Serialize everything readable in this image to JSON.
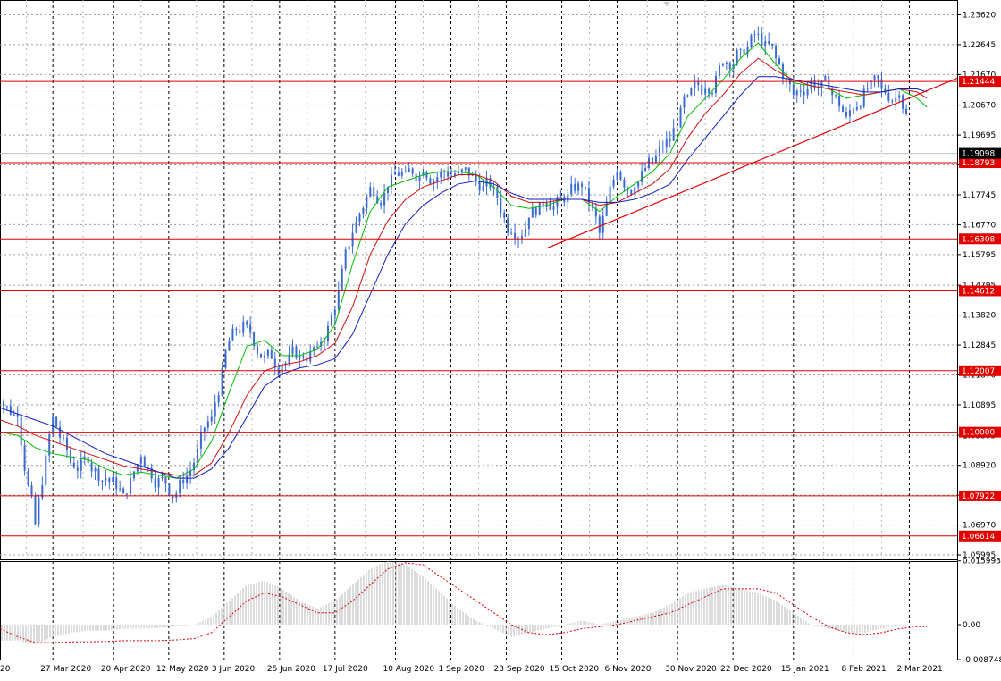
{
  "chart_data": {
    "type": "candlestick",
    "instrument_hint": "",
    "main_price_axis": {
      "ymin": 1.0585,
      "ymax": 1.241,
      "tick_labels": [
        "1.23620",
        "1.22645",
        "1.21670",
        "1.20670",
        "1.19695",
        "1.18720",
        "1.17745",
        "1.16770",
        "1.15795",
        "1.14795",
        "1.13820",
        "1.12845",
        "1.11870",
        "1.10895",
        "1.09895",
        "1.08920",
        "1.07945",
        "1.06970",
        "1.05995"
      ]
    },
    "x_axis": {
      "labels": [
        "20",
        "27 Mar 2020",
        "20 Apr 2020",
        "12 May 2020",
        "3 Jun 2020",
        "25 Jun 2020",
        "17 Jul 2020",
        "10 Aug 2020",
        "1 Sep 2020",
        "23 Sep 2020",
        "15 Oct 2020",
        "6 Nov 2020",
        "30 Nov 2020",
        "22 Dec 2020",
        "15 Jan 2021",
        "8 Feb 2021",
        "2 Mar 2021"
      ]
    },
    "horizontal_levels": [
      {
        "value": 1.21444,
        "label": "1.21444"
      },
      {
        "value": 1.18793,
        "label": "1.18793"
      },
      {
        "value": 1.16308,
        "label": "1.16308"
      },
      {
        "value": 1.14612,
        "label": "1.14612"
      },
      {
        "value": 1.12007,
        "label": "1.12007"
      },
      {
        "value": 1.1,
        "label": "1.10000"
      },
      {
        "value": 1.07922,
        "label": "1.07922"
      },
      {
        "value": 1.06614,
        "label": "1.06614"
      }
    ],
    "current_price": {
      "value": 1.19098,
      "label": "1.19098"
    },
    "trendline": {
      "from": {
        "date": "2020-10-09",
        "price": 1.16
      },
      "to": {
        "date": "2021-03-21",
        "price": 1.2155
      }
    },
    "dates": [
      "2020-03-06",
      "2020-03-13",
      "2020-03-20",
      "2020-03-27",
      "2020-04-03",
      "2020-04-10",
      "2020-04-17",
      "2020-04-24",
      "2020-05-01",
      "2020-05-08",
      "2020-05-15",
      "2020-05-22",
      "2020-05-29",
      "2020-06-05",
      "2020-06-12",
      "2020-06-19",
      "2020-06-26",
      "2020-07-03",
      "2020-07-10",
      "2020-07-17",
      "2020-07-24",
      "2020-07-31",
      "2020-08-07",
      "2020-08-14",
      "2020-08-21",
      "2020-08-28",
      "2020-09-04",
      "2020-09-11",
      "2020-09-18",
      "2020-09-25",
      "2020-10-02",
      "2020-10-09",
      "2020-10-16",
      "2020-10-23",
      "2020-10-30",
      "2020-11-06",
      "2020-11-13",
      "2020-11-20",
      "2020-11-27",
      "2020-12-04",
      "2020-12-11",
      "2020-12-18",
      "2020-12-25",
      "2021-01-01",
      "2021-01-08",
      "2021-01-15",
      "2021-01-22",
      "2021-01-29",
      "2021-02-05",
      "2021-02-12",
      "2021-02-19",
      "2021-02-26",
      "2021-03-05",
      "2021-03-09"
    ],
    "close": [
      1.11,
      1.105,
      1.07,
      1.105,
      1.09,
      1.09,
      1.085,
      1.08,
      1.092,
      1.085,
      1.08,
      1.09,
      1.105,
      1.13,
      1.135,
      1.125,
      1.122,
      1.125,
      1.128,
      1.14,
      1.165,
      1.18,
      1.18,
      1.185,
      1.185,
      1.185,
      1.185,
      1.182,
      1.18,
      1.165,
      1.17,
      1.175,
      1.175,
      1.18,
      1.165,
      1.185,
      1.18,
      1.188,
      1.195,
      1.21,
      1.212,
      1.22,
      1.225,
      1.23,
      1.222,
      1.21,
      1.215,
      1.212,
      1.203,
      1.212,
      1.212,
      1.21,
      1.195,
      1.19
    ],
    "series": [
      {
        "name": "",
        "color": "#00c000",
        "values": [
          1.1,
          1.099,
          1.095,
          1.093,
          1.092,
          1.091,
          1.088,
          1.086,
          1.087,
          1.086,
          1.085,
          1.088,
          1.097,
          1.113,
          1.128,
          1.13,
          1.125,
          1.125,
          1.127,
          1.135,
          1.155,
          1.172,
          1.18,
          1.182,
          1.184,
          1.185,
          1.185,
          1.184,
          1.18,
          1.174,
          1.173,
          1.174,
          1.176,
          1.176,
          1.172,
          1.177,
          1.181,
          1.185,
          1.191,
          1.203,
          1.209,
          1.215,
          1.222,
          1.227,
          1.22,
          1.214,
          1.213,
          1.212,
          1.209,
          1.21,
          1.211,
          1.212,
          1.209,
          1.206
        ]
      },
      {
        "name": "",
        "color": "#d01010",
        "values": [
          1.104,
          1.102,
          1.099,
          1.097,
          1.095,
          1.093,
          1.091,
          1.089,
          1.088,
          1.087,
          1.086,
          1.086,
          1.09,
          1.1,
          1.112,
          1.12,
          1.122,
          1.123,
          1.125,
          1.129,
          1.141,
          1.158,
          1.169,
          1.176,
          1.18,
          1.182,
          1.184,
          1.184,
          1.182,
          1.177,
          1.175,
          1.175,
          1.176,
          1.176,
          1.174,
          1.175,
          1.178,
          1.181,
          1.186,
          1.196,
          1.204,
          1.21,
          1.217,
          1.222,
          1.218,
          1.215,
          1.213,
          1.212,
          1.211,
          1.21,
          1.211,
          1.212,
          1.211,
          1.209
        ]
      },
      {
        "name": "",
        "color": "#1020c0",
        "values": [
          1.108,
          1.106,
          1.104,
          1.102,
          1.099,
          1.096,
          1.093,
          1.091,
          1.089,
          1.087,
          1.085,
          1.085,
          1.088,
          1.095,
          1.105,
          1.115,
          1.119,
          1.121,
          1.122,
          1.124,
          1.132,
          1.145,
          1.158,
          1.168,
          1.174,
          1.178,
          1.181,
          1.182,
          1.181,
          1.178,
          1.176,
          1.176,
          1.176,
          1.176,
          1.175,
          1.175,
          1.176,
          1.178,
          1.181,
          1.189,
          1.196,
          1.203,
          1.21,
          1.216,
          1.216,
          1.215,
          1.214,
          1.213,
          1.212,
          1.211,
          1.211,
          1.212,
          1.212,
          1.211
        ]
      }
    ],
    "oscillator": {
      "ymin": -0.00874,
      "ymax": 0.01593,
      "tick_labels": [
        "0.015993",
        "0.00",
        "-0.008748"
      ],
      "histogram": [
        -0.004,
        -0.004,
        -0.005,
        -0.003,
        -0.002,
        -0.0015,
        -0.0015,
        -0.001,
        -0.001,
        -0.0008,
        -0.0005,
        0.0,
        0.002,
        0.006,
        0.01,
        0.011,
        0.009,
        0.006,
        0.004,
        0.006,
        0.01,
        0.014,
        0.016,
        0.015,
        0.012,
        0.008,
        0.004,
        0.001,
        -0.001,
        -0.003,
        -0.002,
        -0.001,
        0.0,
        0.001,
        0.0,
        0.001,
        0.002,
        0.003,
        0.005,
        0.008,
        0.009,
        0.01,
        0.009,
        0.008,
        0.006,
        0.003,
        0.0,
        -0.001,
        -0.002,
        -0.002,
        -0.001,
        0.0,
        -0.001,
        -0.002
      ],
      "signal": [
        -0.001,
        -0.003,
        -0.0045,
        -0.0045,
        -0.0043,
        -0.0043,
        -0.0042,
        -0.004,
        -0.004,
        -0.004,
        -0.0038,
        -0.0035,
        -0.002,
        0.002,
        0.006,
        0.008,
        0.007,
        0.005,
        0.003,
        0.003,
        0.006,
        0.01,
        0.014,
        0.0155,
        0.015,
        0.012,
        0.009,
        0.006,
        0.003,
        0.0,
        -0.002,
        -0.0025,
        -0.002,
        -0.001,
        -0.0005,
        0.0,
        0.001,
        0.002,
        0.003,
        0.005,
        0.007,
        0.009,
        0.009,
        0.009,
        0.008,
        0.005,
        0.002,
        -0.0005,
        -0.002,
        -0.0025,
        -0.002,
        -0.001,
        -0.0005,
        -0.0005
      ]
    }
  }
}
